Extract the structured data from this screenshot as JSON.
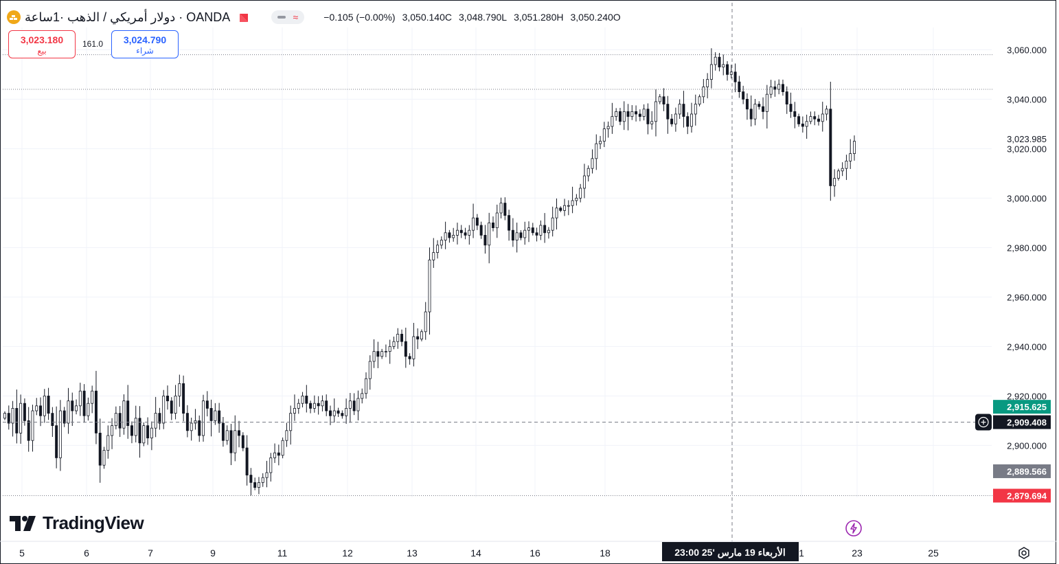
{
  "header": {
    "symbol_title": "دولار أمريكي / الذهب ·1ساعة · OANDA",
    "ohlc": [
      "−0.105 (−0.00%)",
      "3,050.140C",
      "3,048.790L",
      "3,051.280H",
      "3,050.240O"
    ]
  },
  "trade": {
    "sell_price": "3,023.180",
    "sell_label": "بيع",
    "spread": "161.0",
    "buy_price": "3,024.790",
    "buy_label": "شراء"
  },
  "brand": {
    "logo_text": "TradingView"
  },
  "colors": {
    "up": "#131722",
    "down": "#131722",
    "sell": "#f23645",
    "buy": "#2962ff",
    "green_tag": "#089981",
    "gray_tag": "#787b86",
    "red_tag": "#f23645",
    "cursor_tag": "#131722"
  },
  "chart_data": {
    "type": "candlestick",
    "symbol": "XAU/USD",
    "timeframe": "1h",
    "y_range": [
      2879.0,
      3069.0
    ],
    "y_ticks": [
      {
        "value": 3060,
        "label": "3,060.000"
      },
      {
        "value": 3040,
        "label": "3,040.000"
      },
      {
        "value": 3020,
        "label": "3,020.000"
      },
      {
        "value": 3000,
        "label": "3,000.000"
      },
      {
        "value": 2980,
        "label": "2,980.000"
      },
      {
        "value": 2960,
        "label": "2,960.000"
      },
      {
        "value": 2940,
        "label": "2,940.000"
      },
      {
        "value": 2920,
        "label": "2,920.000"
      },
      {
        "value": 2900,
        "label": "2,900.000"
      }
    ],
    "x_ticks": [
      {
        "pos": 0,
        "label": "5"
      },
      {
        "pos": 1,
        "label": "6"
      },
      {
        "pos": 2,
        "label": "7"
      },
      {
        "pos": 3,
        "label": "9"
      },
      {
        "pos": 4,
        "label": "11"
      },
      {
        "pos": 5,
        "label": "12"
      },
      {
        "pos": 6,
        "label": "13"
      },
      {
        "pos": 7,
        "label": "14"
      },
      {
        "pos": 8,
        "label": "16"
      },
      {
        "pos": 9,
        "label": "18"
      },
      {
        "pos": 10,
        "label": "1"
      },
      {
        "pos": 11,
        "label": "23"
      },
      {
        "pos": 12,
        "label": "25"
      }
    ],
    "price_tags": [
      {
        "value": 3023.985,
        "label": "3,023.985",
        "style": "plain"
      },
      {
        "value": 2915.625,
        "label": "2,915.625",
        "style": "green"
      },
      {
        "value": 2909.408,
        "label": "2,909.408",
        "style": "cursor"
      },
      {
        "value": 2889.566,
        "label": "2,889.566",
        "style": "gray"
      },
      {
        "value": 2879.694,
        "label": "2,879.694",
        "style": "red"
      }
    ],
    "reference_lines": [
      3058.0,
      3044.0,
      2879.694
    ],
    "crosshair": {
      "price": 2909.408,
      "time_label": "الأربعاء 19 مارس '25   23:00"
    },
    "closes": [
      2913,
      2909,
      2915,
      2905,
      2917,
      2910,
      2902,
      2914,
      2916,
      2912,
      2920,
      2913,
      2908,
      2895,
      2914,
      2909,
      2918,
      2914,
      2916,
      2922,
      2912,
      2917,
      2922,
      2905,
      2892,
      2898,
      2904,
      2908,
      2913,
      2907,
      2918,
      2908,
      2904,
      2911,
      2901,
      2908,
      2903,
      2907,
      2913,
      2909,
      2920,
      2918,
      2913,
      2920,
      2925,
      2913,
      2906,
      2909,
      2910,
      2904,
      2918,
      2915,
      2910,
      2914,
      2909,
      2902,
      2906,
      2897,
      2906,
      2904,
      2899,
      2888,
      2885,
      2883,
      2885,
      2887,
      2889,
      2895,
      2897,
      2896,
      2902,
      2906,
      2913,
      2915,
      2917,
      2920,
      2917,
      2915,
      2917,
      2916,
      2918,
      2914,
      2912,
      2914,
      2913,
      2912,
      2915,
      2918,
      2914,
      2919,
      2921,
      2927,
      2934,
      2938,
      2936,
      2938,
      2938,
      2940,
      2942,
      2945,
      2942,
      2936,
      2935,
      2944,
      2943,
      2946,
      2954,
      2975,
      2978,
      2981,
      2983,
      2986,
      2984,
      2985,
      2987,
      2986,
      2985,
      2987,
      2992,
      2989,
      2985,
      2981,
      2990,
      2988,
      2994,
      2998,
      2993,
      2987,
      2983,
      2986,
      2984,
      2987,
      2988,
      2986,
      2985,
      2989,
      2986,
      2987,
      2992,
      2996,
      2995,
      2997,
      2997,
      2999,
      3000,
      3004,
      3009,
      3012,
      3016,
      3022,
      3023,
      3028,
      3029,
      3033,
      3035,
      3031,
      3035,
      3033,
      3035,
      3034,
      3033,
      3036,
      3030,
      3031,
      3039,
      3041,
      3038,
      3032,
      3030,
      3034,
      3038,
      3033,
      3029,
      3034,
      3038,
      3041,
      3045,
      3048,
      3054,
      3057,
      3053,
      3054,
      3050,
      3051,
      3047,
      3043,
      3040,
      3036,
      3032,
      3038,
      3037,
      3035,
      3042,
      3045,
      3044,
      3046,
      3043,
      3038,
      3035,
      3033,
      3030,
      3029,
      3031,
      3033,
      3032,
      3031,
      3034,
      3036,
      3005,
      3008,
      3011,
      3012,
      3015,
      3018,
      3023
    ]
  }
}
